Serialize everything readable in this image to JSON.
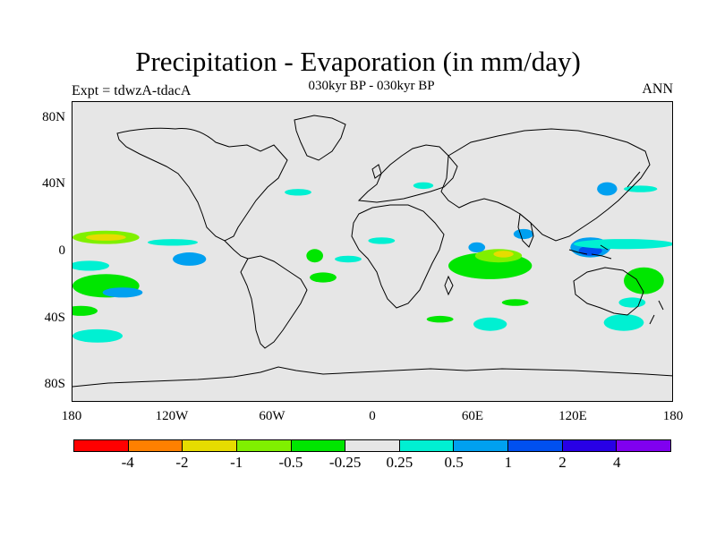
{
  "title": "Precipitation - Evaporation (in mm/day)",
  "subtitle": "030kyr BP - 030kyr BP",
  "left_label": "Expt = tdwzA-tdacA",
  "right_label": "ANN",
  "lat_ticks": [
    "80N",
    "40N",
    "0",
    "40S",
    "80S"
  ],
  "lat_values": [
    80,
    40,
    0,
    -40,
    -80
  ],
  "lon_ticks": [
    "180",
    "120W",
    "60W",
    "0",
    "60E",
    "120E",
    "180"
  ],
  "lon_values": [
    -180,
    -120,
    -60,
    0,
    60,
    120,
    180
  ],
  "colorbar": {
    "colors": [
      "#ff0000",
      "#ff8000",
      "#e6dc00",
      "#80f000",
      "#00e600",
      "#e6e6e6",
      "#00f0d2",
      "#00a0f0",
      "#0050f0",
      "#2800e6",
      "#8000f0"
    ],
    "labels": [
      "-4",
      "-2",
      "-1",
      "-0.5",
      "-0.25",
      "0.25",
      "0.5",
      "1",
      "2",
      "4"
    ]
  },
  "map_data": {
    "background_color": "#e6e6e6",
    "anomaly_patches": [
      {
        "lon": -160,
        "lat": 9,
        "rx": 20,
        "ry": 4,
        "color": "#80f000"
      },
      {
        "lon": -160,
        "lat": 9,
        "rx": 12,
        "ry": 2,
        "color": "#e6dc00"
      },
      {
        "lon": -120,
        "lat": 6,
        "rx": 15,
        "ry": 2,
        "color": "#00f0d2"
      },
      {
        "lon": -170,
        "lat": -8,
        "rx": 12,
        "ry": 3,
        "color": "#00f0d2"
      },
      {
        "lon": -160,
        "lat": -20,
        "rx": 20,
        "ry": 7,
        "color": "#00e600"
      },
      {
        "lon": -150,
        "lat": -24,
        "rx": 12,
        "ry": 3,
        "color": "#00a0f0"
      },
      {
        "lon": -175,
        "lat": -35,
        "rx": 10,
        "ry": 3,
        "color": "#00e600"
      },
      {
        "lon": -165,
        "lat": -50,
        "rx": 15,
        "ry": 4,
        "color": "#00f0d2"
      },
      {
        "lon": -110,
        "lat": -4,
        "rx": 10,
        "ry": 4,
        "color": "#00a0f0"
      },
      {
        "lon": -45,
        "lat": 36,
        "rx": 8,
        "ry": 2,
        "color": "#00f0d2"
      },
      {
        "lon": -35,
        "lat": -2,
        "rx": 5,
        "ry": 4,
        "color": "#00e600"
      },
      {
        "lon": -30,
        "lat": -15,
        "rx": 8,
        "ry": 3,
        "color": "#00e600"
      },
      {
        "lon": -15,
        "lat": -4,
        "rx": 8,
        "ry": 2,
        "color": "#00f0d2"
      },
      {
        "lon": 5,
        "lat": 7,
        "rx": 8,
        "ry": 2,
        "color": "#00f0d2"
      },
      {
        "lon": 30,
        "lat": 40,
        "rx": 6,
        "ry": 2,
        "color": "#00f0d2"
      },
      {
        "lon": 70,
        "lat": -8,
        "rx": 25,
        "ry": 8,
        "color": "#00e600"
      },
      {
        "lon": 75,
        "lat": -2,
        "rx": 14,
        "ry": 4,
        "color": "#80f000"
      },
      {
        "lon": 78,
        "lat": -1,
        "rx": 6,
        "ry": 2,
        "color": "#e6dc00"
      },
      {
        "lon": 62,
        "lat": 3,
        "rx": 5,
        "ry": 3,
        "color": "#00a0f0"
      },
      {
        "lon": 90,
        "lat": 11,
        "rx": 6,
        "ry": 3,
        "color": "#00a0f0"
      },
      {
        "lon": 130,
        "lat": 3,
        "rx": 12,
        "ry": 6,
        "color": "#00a0f0"
      },
      {
        "lon": 130,
        "lat": 1,
        "rx": 7,
        "ry": 3,
        "color": "#0050f0"
      },
      {
        "lon": 150,
        "lat": 5,
        "rx": 30,
        "ry": 3,
        "color": "#00f0d2"
      },
      {
        "lon": 162,
        "lat": -17,
        "rx": 12,
        "ry": 8,
        "color": "#00e600"
      },
      {
        "lon": 140,
        "lat": 38,
        "rx": 6,
        "ry": 4,
        "color": "#00a0f0"
      },
      {
        "lon": 160,
        "lat": 38,
        "rx": 10,
        "ry": 2,
        "color": "#00f0d2"
      },
      {
        "lon": 150,
        "lat": -42,
        "rx": 12,
        "ry": 5,
        "color": "#00f0d2"
      },
      {
        "lon": 70,
        "lat": -43,
        "rx": 10,
        "ry": 4,
        "color": "#00f0d2"
      },
      {
        "lon": 85,
        "lat": -30,
        "rx": 8,
        "ry": 2,
        "color": "#00e600"
      },
      {
        "lon": 40,
        "lat": -40,
        "rx": 8,
        "ry": 2,
        "color": "#00e600"
      },
      {
        "lon": 155,
        "lat": -30,
        "rx": 8,
        "ry": 3,
        "color": "#00f0d2"
      }
    ]
  }
}
